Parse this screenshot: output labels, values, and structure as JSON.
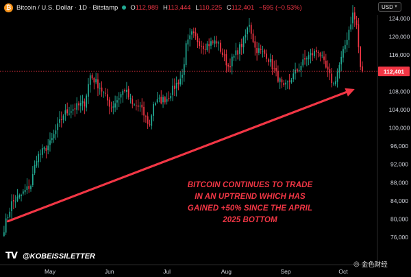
{
  "header": {
    "symbol_title": "Bitcoin / U.S. Dollar · 1D · Bitstamp",
    "ohlc": [
      {
        "k": "O",
        "v": "112,989"
      },
      {
        "k": "H",
        "v": "113,444"
      },
      {
        "k": "L",
        "v": "110,225"
      },
      {
        "k": "C",
        "v": "112,401"
      }
    ],
    "change": "−595 (−0.53%)",
    "currency": "USD"
  },
  "annotation": {
    "lines": [
      "BITCOIN CONTINUES TO TRADE",
      "IN AN UPTREND WHICH HAS",
      "GAINED +50% SINCE THE APRIL",
      "2025 BOTTOM"
    ]
  },
  "brand": {
    "handle": "@KOBEISSILETTER",
    "tv_logo": "TV"
  },
  "watermark": {
    "text": "金色财经"
  },
  "colors": {
    "up": "#22ab94",
    "down": "#f23645",
    "arrow": "#f23645",
    "price_label_bg": "#f23645"
  },
  "chart_data": {
    "type": "candlestick",
    "x_tick_labels": [
      "May",
      "Jun",
      "Jul",
      "Aug",
      "Sep",
      "Oct"
    ],
    "y_ticks": [
      76000,
      80000,
      84000,
      88000,
      92000,
      96000,
      100000,
      104000,
      108000,
      112000,
      116000,
      120000,
      124000
    ],
    "y_tick_labels": [
      "76,000",
      "80,000",
      "84,000",
      "88,000",
      "92,000",
      "96,000",
      "100,000",
      "104,000",
      "108,000",
      "112,000",
      "116,000",
      "120,000",
      "124,000"
    ],
    "ylim": [
      74000,
      126000
    ],
    "last_price": 112401,
    "last_price_label": "112,401",
    "ohlc_path": [
      [
        "2025-04-07",
        78000
      ],
      [
        "2025-04-11",
        83500
      ],
      [
        "2025-04-15",
        84800
      ],
      [
        "2025-04-21",
        87500
      ],
      [
        "2025-04-24",
        93500
      ],
      [
        "2025-05-01",
        96500
      ],
      [
        "2025-05-08",
        103000
      ],
      [
        "2025-05-12",
        104000
      ],
      [
        "2025-05-19",
        105500
      ],
      [
        "2025-05-22",
        111500
      ],
      [
        "2025-05-27",
        109000
      ],
      [
        "2025-06-02",
        104500
      ],
      [
        "2025-06-09",
        108500
      ],
      [
        "2025-06-13",
        105000
      ],
      [
        "2025-06-17",
        104500
      ],
      [
        "2025-06-22",
        100500
      ],
      [
        "2025-06-24",
        105500
      ],
      [
        "2025-07-01",
        106500
      ],
      [
        "2025-07-09",
        111500
      ],
      [
        "2025-07-11",
        117800
      ],
      [
        "2025-07-14",
        120500
      ],
      [
        "2025-07-20",
        118000
      ],
      [
        "2025-07-27",
        119000
      ],
      [
        "2025-08-02",
        113500
      ],
      [
        "2025-08-10",
        119000
      ],
      [
        "2025-08-13",
        123000
      ],
      [
        "2025-08-16",
        117500
      ],
      [
        "2025-08-22",
        116000
      ],
      [
        "2025-08-31",
        108500
      ],
      [
        "2025-09-05",
        111500
      ],
      [
        "2025-09-12",
        115500
      ],
      [
        "2025-09-18",
        117000
      ],
      [
        "2025-09-22",
        113000
      ],
      [
        "2025-09-26",
        109500
      ],
      [
        "2025-10-01",
        116500
      ],
      [
        "2025-10-06",
        125000
      ],
      [
        "2025-10-08",
        122500
      ],
      [
        "2025-10-10",
        112900
      ],
      [
        "2025-10-11",
        112401
      ]
    ],
    "trend_arrow": {
      "from": [
        "2025-04-09",
        79500
      ],
      "to": [
        "2025-10-07",
        108500
      ]
    }
  }
}
